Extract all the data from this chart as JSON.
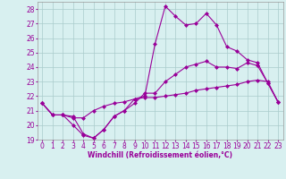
{
  "xlabel": "Windchill (Refroidissement éolien,°C)",
  "x": [
    0,
    1,
    2,
    3,
    4,
    5,
    6,
    7,
    8,
    9,
    10,
    11,
    12,
    13,
    14,
    15,
    16,
    17,
    18,
    19,
    20,
    21,
    22,
    23
  ],
  "line1": [
    21.5,
    20.7,
    20.7,
    20.0,
    19.3,
    19.1,
    19.7,
    20.6,
    21.0,
    21.8,
    22.0,
    25.6,
    28.2,
    27.5,
    26.9,
    27.0,
    27.7,
    26.9,
    25.4,
    25.1,
    24.5,
    24.3,
    22.9,
    21.6
  ],
  "line2": [
    21.5,
    20.7,
    20.7,
    20.6,
    19.4,
    19.1,
    19.7,
    20.6,
    21.0,
    21.5,
    22.2,
    22.2,
    23.0,
    23.5,
    24.0,
    24.2,
    24.4,
    24.0,
    24.0,
    23.9,
    24.3,
    24.1,
    22.9,
    21.6
  ],
  "line3": [
    21.5,
    20.7,
    20.7,
    20.5,
    20.5,
    21.0,
    21.3,
    21.5,
    21.6,
    21.8,
    21.9,
    21.9,
    22.0,
    22.1,
    22.2,
    22.4,
    22.5,
    22.6,
    22.7,
    22.8,
    23.0,
    23.1,
    23.0,
    21.6
  ],
  "line_color": "#990099",
  "bg_color": "#d8f0f0",
  "grid_color": "#aacccc",
  "tick_color": "#990099",
  "label_color": "#990099",
  "ylim": [
    19,
    28.5
  ],
  "yticks": [
    19,
    20,
    21,
    22,
    23,
    24,
    25,
    26,
    27,
    28
  ],
  "xlim": [
    -0.5,
    23.5
  ],
  "marker": "D",
  "markersize": 2.0,
  "linewidth": 0.8,
  "tick_fontsize": 5.5,
  "xlabel_fontsize": 5.5
}
